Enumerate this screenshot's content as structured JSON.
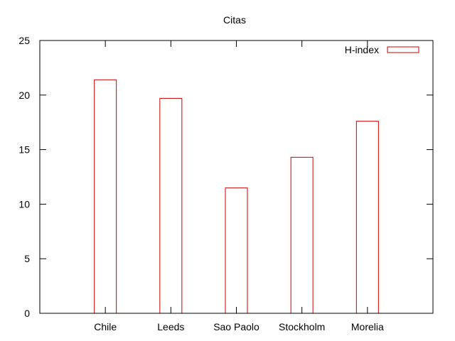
{
  "chart_data": {
    "type": "bar",
    "title": "Citas",
    "xlabel": "",
    "ylabel": "",
    "categories": [
      "Chile",
      "Leeds",
      "Sao Paolo",
      "Stockholm",
      "Morelia"
    ],
    "series": [
      {
        "name": "H-index",
        "values": [
          21.4,
          19.7,
          11.5,
          14.3,
          17.6
        ]
      }
    ],
    "ylim": [
      0,
      25
    ],
    "yticks": [
      0,
      5,
      10,
      15,
      20,
      25
    ],
    "grid": false,
    "legend_position": "top-right",
    "colors": {
      "bar": "#cc0000",
      "axis": "#000000"
    }
  }
}
